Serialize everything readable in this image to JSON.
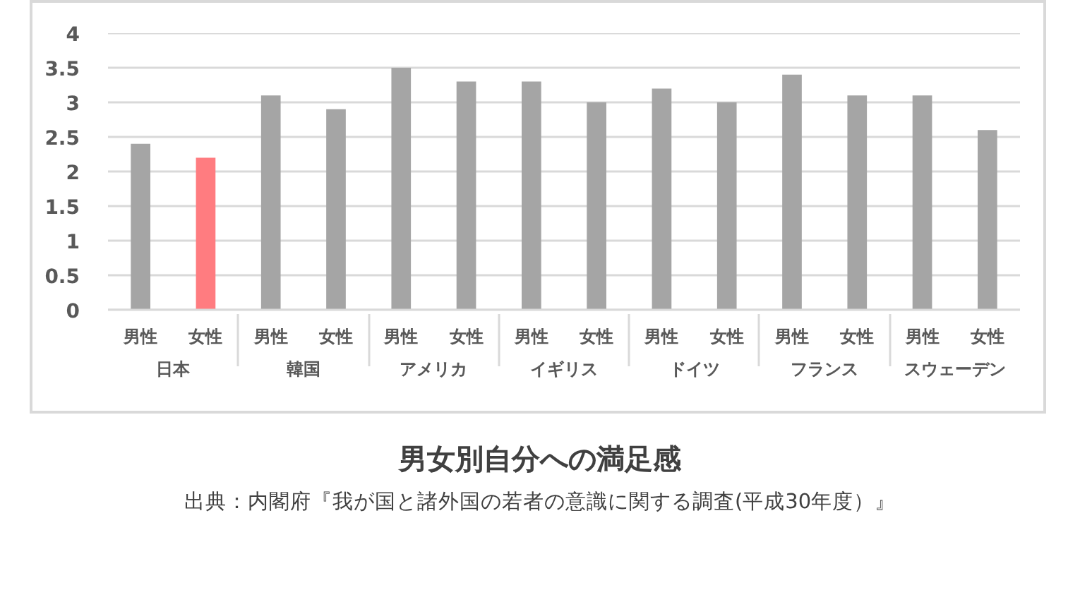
{
  "chart_data": {
    "type": "bar",
    "title": "男女別自分への満足感",
    "annotations": [
      "出典：内閣府『我が国と諸外国の若者の意識に関する調査(平成30年度）』"
    ],
    "categories": [
      "日本",
      "韓国",
      "アメリカ",
      "イギリス",
      "ドイツ",
      "フランス",
      "スウェーデン"
    ],
    "series": [
      {
        "name": "男性",
        "color": "#a5a5a5",
        "values": [
          2.4,
          3.1,
          3.5,
          3.3,
          3.2,
          3.4,
          3.1
        ]
      },
      {
        "name": "女性",
        "colors": [
          "#ff7c80",
          "#a5a5a5",
          "#a5a5a5",
          "#a5a5a5",
          "#a5a5a5",
          "#a5a5a5",
          "#a5a5a5"
        ],
        "values": [
          2.2,
          2.9,
          3.3,
          3.0,
          3.0,
          3.1,
          2.6
        ]
      }
    ],
    "ylim": [
      0,
      4
    ],
    "yticks": [
      0,
      0.5,
      1,
      1.5,
      2,
      2.5,
      3,
      3.5,
      4
    ],
    "grid": "y"
  }
}
